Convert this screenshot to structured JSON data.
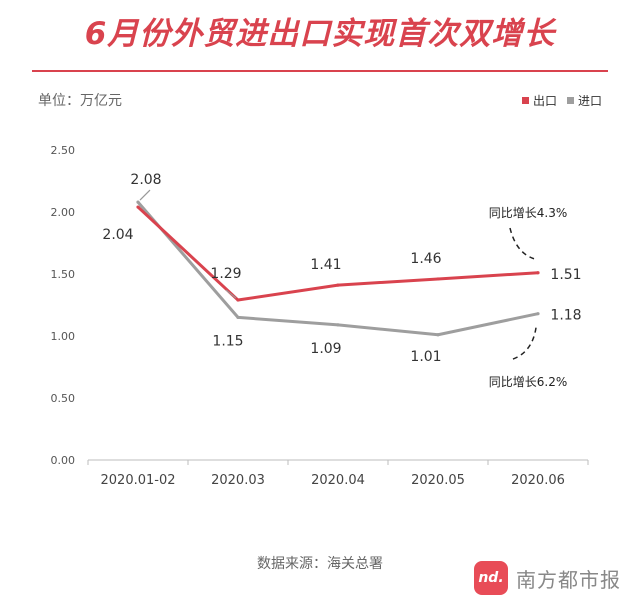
{
  "title": "6月份外贸进出口实现首次双增长",
  "unit": "单位：万亿元",
  "source": "数据来源：海关总署",
  "brand": {
    "icon_text": "nd.",
    "name": "南方都市报"
  },
  "annotations": {
    "export_yoy": "同比增长4.3%",
    "import_yoy": "同比增长6.2%"
  },
  "colors": {
    "export": "#d9434e",
    "import": "#9e9e9e",
    "accent": "#d9434e"
  },
  "chart_data": {
    "type": "line",
    "categories": [
      "2020.01-02",
      "2020.03",
      "2020.04",
      "2020.05",
      "2020.06"
    ],
    "ylim": [
      0,
      2.5
    ],
    "y_ticks": [
      "0.00",
      "0.50",
      "1.00",
      "1.50",
      "2.00",
      "2.50"
    ],
    "grid": false,
    "legend_position": "top-right",
    "series": [
      {
        "name": "出口",
        "values": [
          2.04,
          1.29,
          1.41,
          1.46,
          1.51
        ],
        "labels": [
          "2.04",
          "1.29",
          "1.41",
          "1.46",
          "1.51"
        ]
      },
      {
        "name": "进口",
        "values": [
          2.08,
          1.15,
          1.09,
          1.01,
          1.18
        ],
        "labels": [
          "2.08",
          "1.15",
          "1.09",
          "1.01",
          "1.18"
        ]
      }
    ]
  }
}
